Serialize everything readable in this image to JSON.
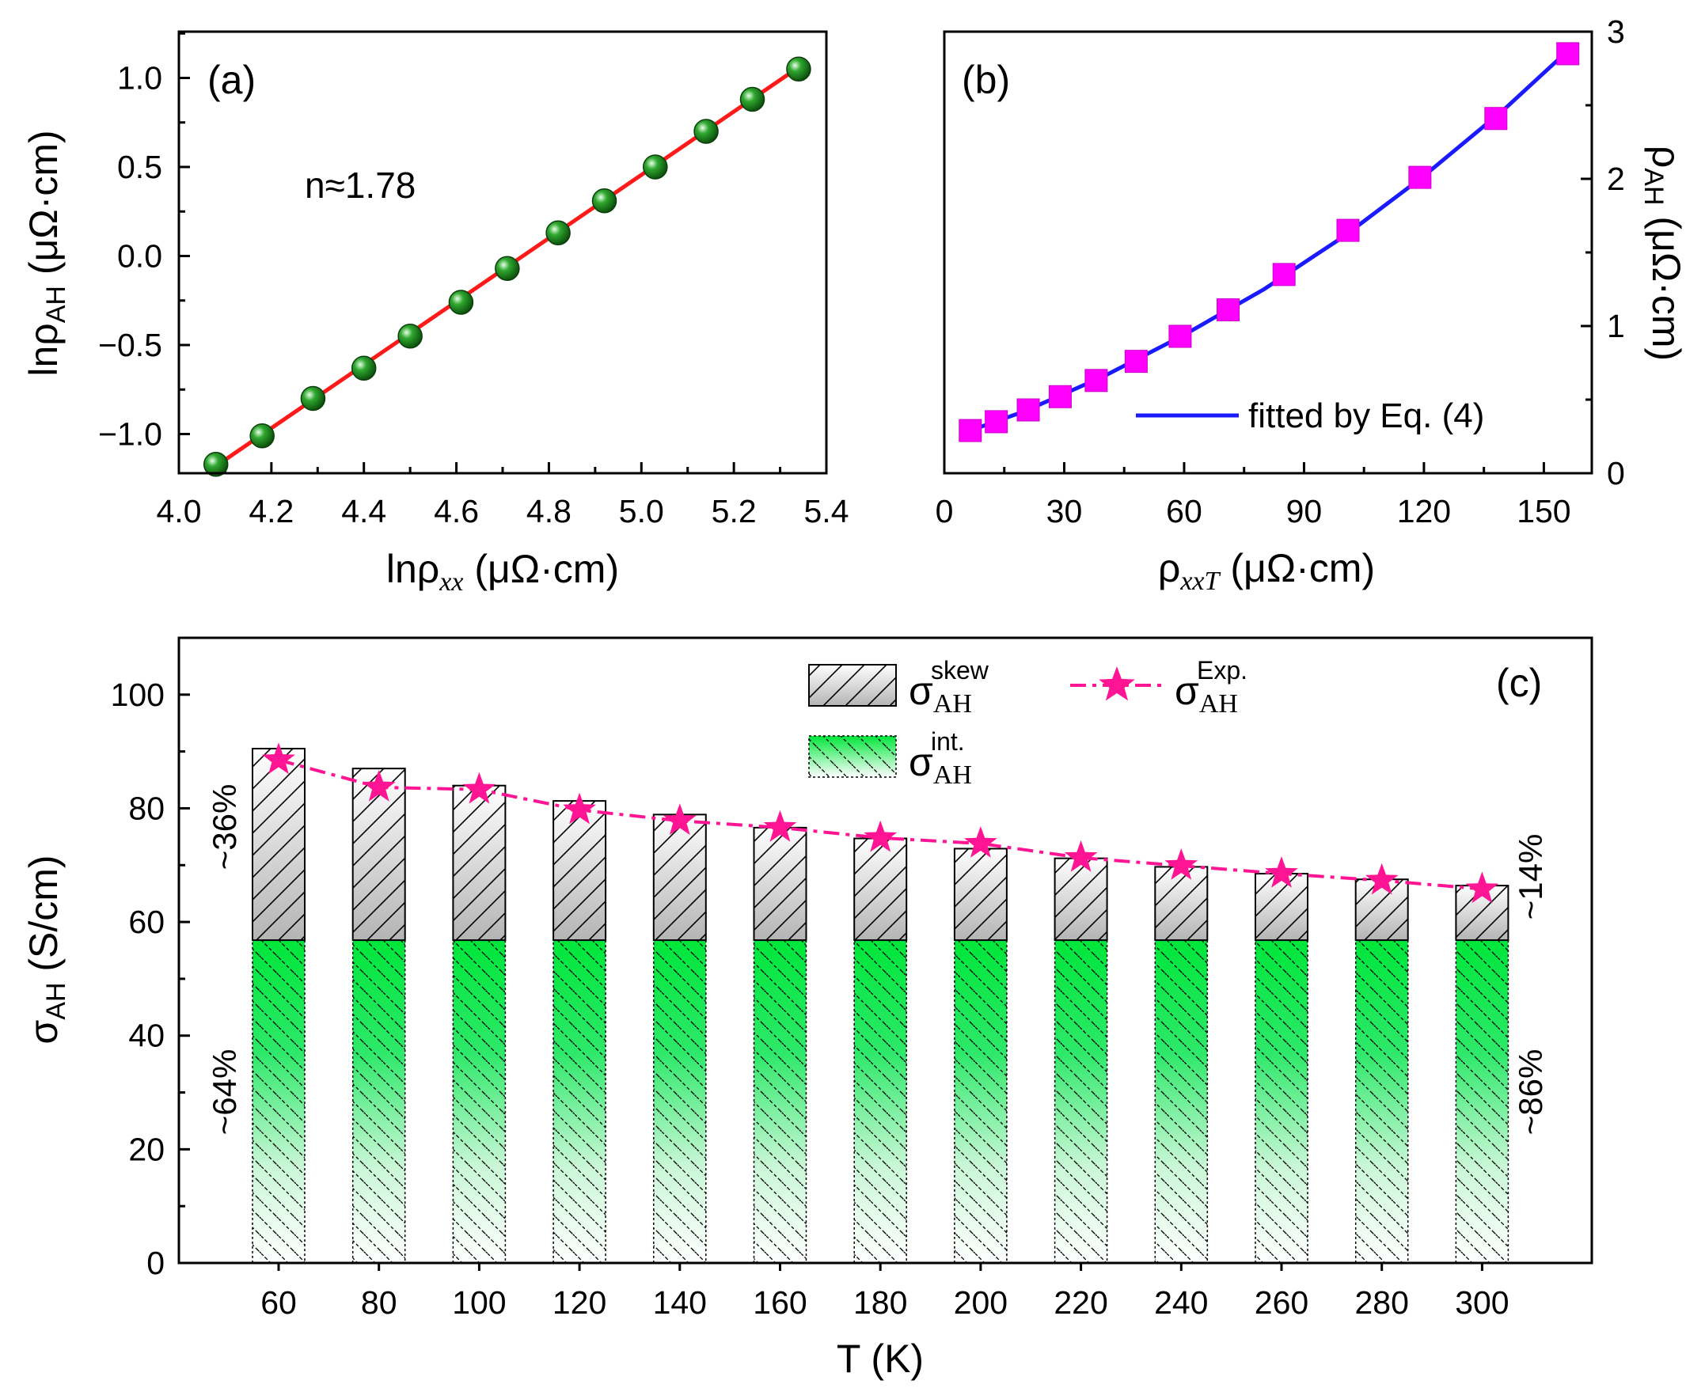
{
  "colors": {
    "green_marker": "#1f8f1f",
    "red_fit": "#ff1a1a",
    "magenta_marker": "#ff00ff",
    "blue_fit": "#1a1aff",
    "star": "#ff1493",
    "skew_gray": "#bdbdbd",
    "int_green": "#00e63a",
    "pct_gray": "#a6a6a6",
    "pct_green": "#1ee61e"
  },
  "chart_data": [
    {
      "type": "scatter",
      "panel_label": "(a)",
      "xlabel": {
        "main": "lnρ",
        "sub": "xx",
        "unit": " (μΩ·cm)"
      },
      "ylabel": {
        "main": "lnρ",
        "sub": "AH",
        "unit": " (μΩ·cm)"
      },
      "xlim": [
        4.0,
        5.4
      ],
      "ylim": [
        -1.22,
        1.26
      ],
      "xticks": [
        4.0,
        4.2,
        4.4,
        4.6,
        4.8,
        5.0,
        5.2,
        5.4
      ],
      "xtick_labels": [
        "4.0",
        "4.2",
        "4.4",
        "4.6",
        "4.8",
        "5.0",
        "5.2",
        "5.4"
      ],
      "yticks": [
        -1.0,
        -0.5,
        0.0,
        0.5,
        1.0
      ],
      "ytick_labels": [
        "−1.0",
        "−0.5",
        "0.0",
        "0.5",
        "1.0"
      ],
      "annotation": "n≈1.78",
      "x": [
        4.08,
        4.18,
        4.29,
        4.4,
        4.5,
        4.61,
        4.71,
        4.82,
        4.92,
        5.03,
        5.14,
        5.24,
        5.34
      ],
      "y": [
        -1.17,
        -1.01,
        -0.8,
        -0.63,
        -0.45,
        -0.26,
        -0.07,
        0.13,
        0.31,
        0.5,
        0.7,
        0.88,
        1.05
      ],
      "fit": {
        "x": [
          4.08,
          5.34
        ],
        "y": [
          -1.18,
          1.06
        ]
      }
    },
    {
      "type": "scatter",
      "panel_label": "(b)",
      "xlabel": {
        "main": "ρ",
        "sub": "xxT",
        "unit": " (μΩ·cm)"
      },
      "ylabel": {
        "main": "ρ",
        "sub": "AH",
        "unit": " (μΩ·cm)"
      },
      "ylabel_side": "right",
      "xlim": [
        0,
        162
      ],
      "ylim": [
        0,
        3
      ],
      "xticks": [
        0,
        30,
        60,
        90,
        120,
        150
      ],
      "xtick_labels": [
        "0",
        "30",
        "60",
        "90",
        "120",
        "150"
      ],
      "yticks": [
        0,
        1,
        2,
        3
      ],
      "ytick_labels": [
        "0",
        "1",
        "2",
        "3"
      ],
      "legend": "fitted by Eq. (4)",
      "x": [
        6.5,
        13,
        21,
        29,
        38,
        48,
        59,
        71,
        85,
        101,
        119,
        138,
        156
      ],
      "y": [
        0.29,
        0.35,
        0.43,
        0.52,
        0.63,
        0.76,
        0.93,
        1.11,
        1.35,
        1.65,
        2.01,
        2.41,
        2.85
      ],
      "fit": {
        "x": [
          6.5,
          20,
          40,
          60,
          80,
          100,
          120,
          140,
          156
        ],
        "y": [
          0.29,
          0.42,
          0.66,
          0.94,
          1.25,
          1.61,
          2.02,
          2.47,
          2.87
        ]
      }
    },
    {
      "type": "bar",
      "panel_label": "(c)",
      "xlabel": "T (K)",
      "ylabel": {
        "main": "σ",
        "sub": "AH",
        "unit": " (S/cm)"
      },
      "ylim": [
        0,
        110
      ],
      "yticks": [
        0,
        20,
        40,
        60,
        80,
        100
      ],
      "ytick_labels": [
        "0",
        "20",
        "40",
        "60",
        "80",
        "100"
      ],
      "categories": [
        "60",
        "80",
        "100",
        "120",
        "140",
        "160",
        "180",
        "200",
        "220",
        "240",
        "260",
        "280",
        "300"
      ],
      "series": [
        {
          "name": "int.",
          "label_main": "σ",
          "label_sub": "AH",
          "label_sup": "int.",
          "values": [
            56.8,
            56.8,
            56.8,
            56.8,
            56.8,
            56.8,
            56.8,
            56.8,
            56.8,
            56.8,
            56.8,
            56.8,
            56.8
          ]
        },
        {
          "name": "skew",
          "label_main": "σ",
          "label_sub": "AH",
          "label_sup": "skew",
          "values": [
            33.7,
            30.2,
            27.2,
            24.5,
            22.1,
            19.8,
            17.9,
            16.1,
            14.4,
            12.9,
            11.7,
            10.7,
            9.6
          ]
        },
        {
          "name": "Exp.",
          "label_main": "σ",
          "label_sub": "AH",
          "label_sup": "Exp.",
          "values": [
            88.5,
            83.7,
            83.3,
            79.7,
            77.8,
            76.6,
            74.8,
            73.8,
            71.3,
            69.9,
            68.5,
            67.3,
            65.8
          ]
        }
      ],
      "annotations": {
        "left_skew_pct": "~36%",
        "left_int_pct": "~64%",
        "right_skew_pct": "~14%",
        "right_int_pct": "~86%"
      }
    }
  ]
}
